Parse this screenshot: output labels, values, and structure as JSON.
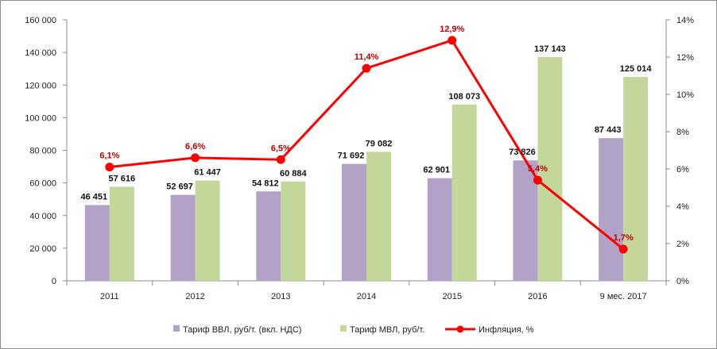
{
  "chart_data": {
    "type": "bar",
    "categories": [
      "2011",
      "2012",
      "2013",
      "2014",
      "2015",
      "2016",
      "9 мес. 2017"
    ],
    "series": [
      {
        "name": "Тариф ВВЛ, руб/т. (вкл. НДС)",
        "type": "bar",
        "axis": "left",
        "color": "#b3a2c7",
        "values": [
          46451,
          52697,
          54812,
          71692,
          62901,
          73826,
          87443
        ],
        "labels": [
          "46 451",
          "52 697",
          "54 812",
          "71 692",
          "62 901",
          "73 826",
          "87 443"
        ]
      },
      {
        "name": "Тариф МВЛ, руб/т.",
        "type": "bar",
        "axis": "left",
        "color": "#c4d79b",
        "values": [
          57616,
          61447,
          60884,
          79082,
          108073,
          137143,
          125014
        ],
        "labels": [
          "57 616",
          "61 447",
          "60 884",
          "79 082",
          "108 073",
          "137 143",
          "125 014"
        ]
      },
      {
        "name": "Инфляция, %",
        "type": "line",
        "axis": "right",
        "color": "#ff0000",
        "label_color": "#c00000",
        "values": [
          6.1,
          6.6,
          6.5,
          11.4,
          12.9,
          5.4,
          1.7
        ],
        "labels": [
          "6,1%",
          "6,6%",
          "6,5%",
          "11,4%",
          "12,9%",
          "5,4%",
          "1,7%"
        ]
      }
    ],
    "y_left": {
      "ylim": [
        0,
        160000
      ],
      "ticks": [
        0,
        20000,
        40000,
        60000,
        80000,
        100000,
        120000,
        140000,
        160000
      ],
      "tick_labels": [
        "0",
        "20 000",
        "40 000",
        "60 000",
        "80 000",
        "100 000",
        "120 000",
        "140 000",
        "160 000"
      ]
    },
    "y_right": {
      "ylim": [
        0,
        14
      ],
      "ticks": [
        0,
        2,
        4,
        6,
        8,
        10,
        12,
        14
      ],
      "tick_labels": [
        "0%",
        "2%",
        "4%",
        "6%",
        "8%",
        "10%",
        "12%",
        "14%"
      ]
    },
    "grid": false,
    "legend": {
      "position": "bottom"
    }
  }
}
